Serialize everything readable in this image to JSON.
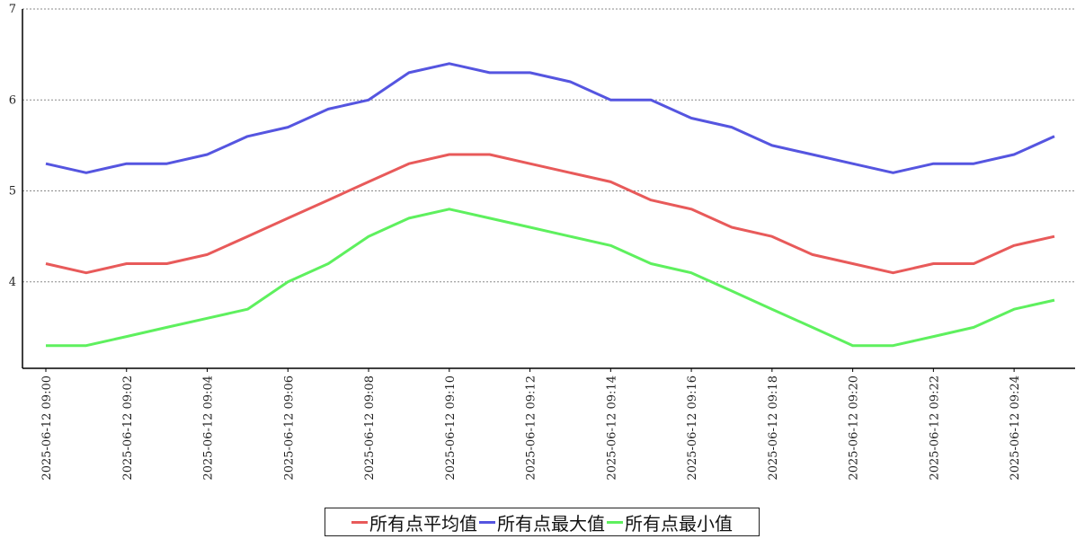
{
  "chart_data": {
    "type": "line",
    "title": "",
    "xlabel": "",
    "ylabel": "",
    "ylim": [
      3.05,
      7
    ],
    "yticks": [
      4,
      5,
      6,
      7
    ],
    "grid": true,
    "legend_position": "bottom",
    "x": [
      "2025-06-12 09:00",
      "2025-06-12 09:01",
      "2025-06-12 09:02",
      "2025-06-12 09:03",
      "2025-06-12 09:04",
      "2025-06-12 09:05",
      "2025-06-12 09:06",
      "2025-06-12 09:07",
      "2025-06-12 09:08",
      "2025-06-12 09:09",
      "2025-06-12 09:10",
      "2025-06-12 09:11",
      "2025-06-12 09:12",
      "2025-06-12 09:13",
      "2025-06-12 09:14",
      "2025-06-12 09:15",
      "2025-06-12 09:16",
      "2025-06-12 09:17",
      "2025-06-12 09:18",
      "2025-06-12 09:19",
      "2025-06-12 09:20",
      "2025-06-12 09:21",
      "2025-06-12 09:22",
      "2025-06-12 09:23",
      "2025-06-12 09:24",
      "2025-06-12 09:25"
    ],
    "xtick_labels": [
      "2025-06-12 09:00",
      "2025-06-12 09:02",
      "2025-06-12 09:04",
      "2025-06-12 09:06",
      "2025-06-12 09:08",
      "2025-06-12 09:10",
      "2025-06-12 09:12",
      "2025-06-12 09:14",
      "2025-06-12 09:16",
      "2025-06-12 09:18",
      "2025-06-12 09:20",
      "2025-06-12 09:22",
      "2025-06-12 09:24"
    ],
    "series": [
      {
        "name": "所有点平均值",
        "color": "#e85a5a",
        "values": [
          4.2,
          4.1,
          4.2,
          4.2,
          4.3,
          4.5,
          4.7,
          4.9,
          5.1,
          5.3,
          5.4,
          5.4,
          5.3,
          5.2,
          5.1,
          4.9,
          4.8,
          4.6,
          4.5,
          4.3,
          4.2,
          4.1,
          4.2,
          4.2,
          4.4,
          4.5
        ]
      },
      {
        "name": "所有点最大值",
        "color": "#5555e0",
        "values": [
          5.3,
          5.2,
          5.3,
          5.3,
          5.4,
          5.6,
          5.7,
          5.9,
          6.0,
          6.3,
          6.4,
          6.3,
          6.3,
          6.2,
          6.0,
          6.0,
          5.8,
          5.7,
          5.5,
          5.4,
          5.3,
          5.2,
          5.3,
          5.3,
          5.4,
          5.6
        ]
      },
      {
        "name": "所有点最小值",
        "color": "#5ef05e",
        "values": [
          3.3,
          3.3,
          3.4,
          3.5,
          3.6,
          3.7,
          4.0,
          4.2,
          4.5,
          4.7,
          4.8,
          4.7,
          4.6,
          4.5,
          4.4,
          4.2,
          4.1,
          3.9,
          3.7,
          3.5,
          3.3,
          3.3,
          3.4,
          3.5,
          3.7,
          3.8
        ]
      }
    ]
  }
}
